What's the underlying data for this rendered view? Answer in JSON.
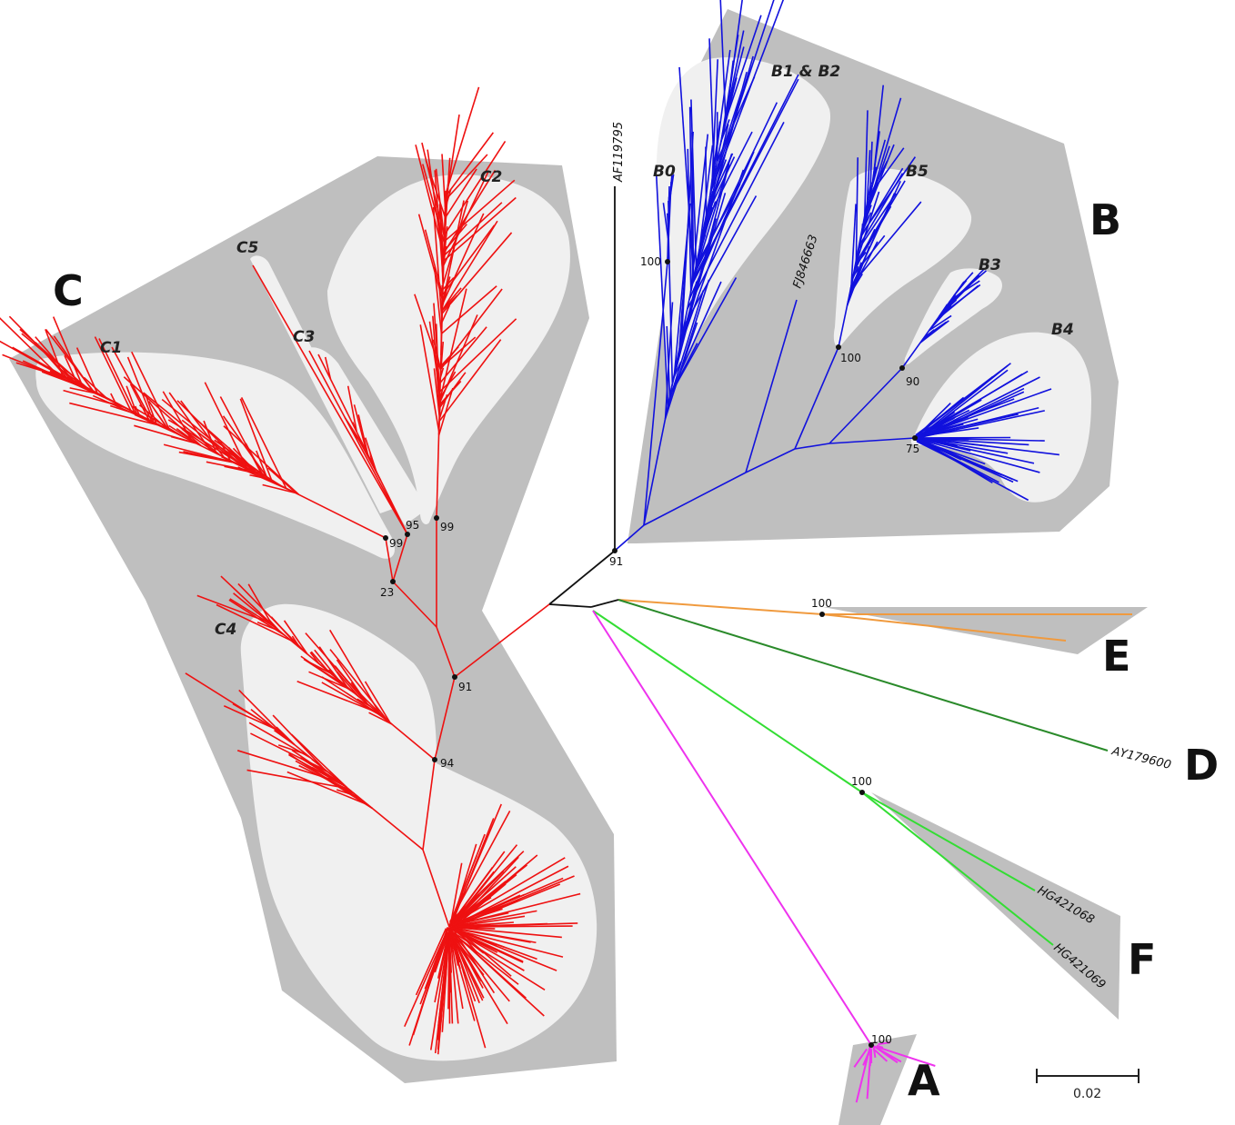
{
  "colors": {
    "genotype_C": "#ee1111",
    "genotype_B": "#1111dd",
    "genotype_E": "#f09a3e",
    "genotype_D": "#2a8a2a",
    "genotype_F": "#33dd33",
    "genotype_A": "#ee33ee",
    "backbone": "#111111",
    "hull": "#bfbfbf",
    "subhull": "#f0f0f0"
  },
  "genotypes": [
    {
      "id": "C",
      "label": "C"
    },
    {
      "id": "B",
      "label": "B"
    },
    {
      "id": "E",
      "label": "E"
    },
    {
      "id": "D",
      "label": "D"
    },
    {
      "id": "F",
      "label": "F"
    },
    {
      "id": "A",
      "label": "A"
    }
  ],
  "subgenotypes": {
    "C1": "C1",
    "C2": "C2",
    "C3": "C3",
    "C4": "C4",
    "C5": "C5",
    "B0": "B0",
    "B12": "B1 & B2",
    "B3": "B3",
    "B4": "B4",
    "B5": "B5"
  },
  "accessions": {
    "AF119795": "AF119795",
    "FJ846663": "FJ846663",
    "AY179600": "AY179600",
    "HG421068": "HG421068",
    "HG421069": "HG421069"
  },
  "bootstrap": {
    "b91": "91",
    "b100_B0": "100",
    "b100_B5": "100",
    "b90": "90",
    "b75": "75",
    "c91": "91",
    "c94": "94",
    "c23": "23",
    "c99a": "99",
    "c95": "95",
    "c99b": "99",
    "e100": "100",
    "f100": "100",
    "a100": "100"
  },
  "scale_bar": {
    "label": "0.02"
  }
}
